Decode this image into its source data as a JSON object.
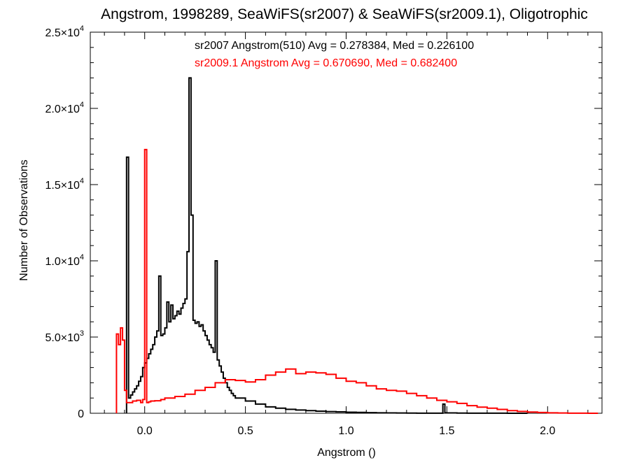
{
  "chart_data": {
    "type": "line",
    "title": "Angstrom, 1998289, SeaWiFS(sr2007) & SeaWiFS(sr2009.1), Oligotrophic",
    "xlabel": "Angstrom ()",
    "ylabel": "Number of Observations",
    "xlim": [
      -0.27,
      2.27
    ],
    "ylim": [
      0,
      25000
    ],
    "grid": false,
    "x_ticks": [
      {
        "value": 0.0,
        "label": "0.0"
      },
      {
        "value": 0.5,
        "label": "0.5"
      },
      {
        "value": 1.0,
        "label": "1.0"
      },
      {
        "value": 1.5,
        "label": "1.5"
      },
      {
        "value": 2.0,
        "label": "2.0"
      }
    ],
    "y_ticks": [
      {
        "value": 0,
        "mant": "0",
        "exp": ""
      },
      {
        "value": 5000,
        "mant": "5.0×10",
        "exp": "3"
      },
      {
        "value": 10000,
        "mant": "1.0×10",
        "exp": "4"
      },
      {
        "value": 15000,
        "mant": "1.5×10",
        "exp": "4"
      },
      {
        "value": 20000,
        "mant": "2.0×10",
        "exp": "4"
      },
      {
        "value": 25000,
        "mant": "2.5×10",
        "exp": "4"
      }
    ],
    "annotations": [
      {
        "text": "sr2007 Angstrom(510) Avg = 0.278384, Med = 0.226100",
        "color": "#000000"
      },
      {
        "text": "sr2009.1 Angstrom Avg = 0.670690, Med = 0.682400",
        "color": "#ff0000"
      }
    ],
    "series": [
      {
        "color": "#000000",
        "x": [
          -0.09,
          -0.08,
          -0.07,
          -0.06,
          -0.05,
          -0.04,
          -0.03,
          -0.02,
          -0.01,
          0.0,
          0.01,
          0.02,
          0.03,
          0.04,
          0.05,
          0.06,
          0.07,
          0.08,
          0.09,
          0.1,
          0.11,
          0.12,
          0.13,
          0.14,
          0.15,
          0.16,
          0.17,
          0.18,
          0.19,
          0.2,
          0.21,
          0.22,
          0.23,
          0.24,
          0.25,
          0.26,
          0.27,
          0.28,
          0.29,
          0.3,
          0.31,
          0.32,
          0.33,
          0.34,
          0.35,
          0.36,
          0.37,
          0.38,
          0.39,
          0.4,
          0.41,
          0.42,
          0.43,
          0.44,
          0.45,
          0.5,
          0.55,
          0.6,
          0.65,
          0.7,
          0.75,
          0.8,
          0.85,
          0.9,
          0.95,
          1.0,
          1.05,
          1.1,
          1.15,
          1.2,
          1.25,
          1.3,
          1.35,
          1.4,
          1.45,
          1.48,
          1.49,
          1.5,
          1.55,
          1.6,
          1.7,
          1.8
        ],
        "values": [
          16800,
          1000,
          1200,
          1400,
          1600,
          1800,
          2100,
          2400,
          3000,
          3300,
          3600,
          3900,
          4200,
          4500,
          5000,
          5400,
          9000,
          5100,
          5200,
          5600,
          7300,
          6000,
          7100,
          6200,
          6400,
          6700,
          6500,
          6900,
          7200,
          7500,
          10600,
          22000,
          13000,
          6100,
          5900,
          6000,
          5700,
          5800,
          5400,
          5100,
          4800,
          4500,
          4300,
          4000,
          10000,
          3500,
          3100,
          2700,
          2300,
          2000,
          1700,
          1500,
          1300,
          1150,
          1000,
          800,
          600,
          420,
          330,
          260,
          210,
          170,
          140,
          110,
          90,
          70,
          55,
          40,
          30,
          20,
          15,
          10,
          8,
          6,
          5,
          600,
          30,
          20,
          12,
          8,
          4,
          2
        ]
      },
      {
        "color": "#ff0000",
        "x": [
          -0.14,
          -0.13,
          -0.12,
          -0.11,
          -0.1,
          -0.09,
          -0.08,
          -0.06,
          -0.04,
          -0.02,
          -0.01,
          0.0,
          0.01,
          0.02,
          0.03,
          0.05,
          0.08,
          0.1,
          0.15,
          0.2,
          0.25,
          0.3,
          0.35,
          0.4,
          0.45,
          0.5,
          0.55,
          0.6,
          0.65,
          0.7,
          0.75,
          0.8,
          0.85,
          0.9,
          0.95,
          1.0,
          1.05,
          1.1,
          1.15,
          1.2,
          1.25,
          1.3,
          1.35,
          1.4,
          1.45,
          1.5,
          1.55,
          1.6,
          1.65,
          1.7,
          1.75,
          1.8,
          1.85,
          1.9,
          1.95,
          2.0,
          2.05,
          2.1,
          2.15,
          2.2
        ],
        "values": [
          5200,
          4500,
          5600,
          4800,
          1500,
          700,
          700,
          800,
          850,
          700,
          900,
          17300,
          700,
          750,
          800,
          820,
          900,
          1000,
          1100,
          1250,
          1500,
          1700,
          2000,
          2200,
          2150,
          2050,
          2200,
          2500,
          2700,
          2900,
          2600,
          2700,
          2650,
          2550,
          2300,
          2100,
          2000,
          1800,
          1600,
          1500,
          1450,
          1300,
          1150,
          1000,
          850,
          750,
          650,
          500,
          400,
          330,
          250,
          170,
          120,
          80,
          50,
          30,
          15,
          8,
          3,
          0
        ]
      }
    ]
  }
}
